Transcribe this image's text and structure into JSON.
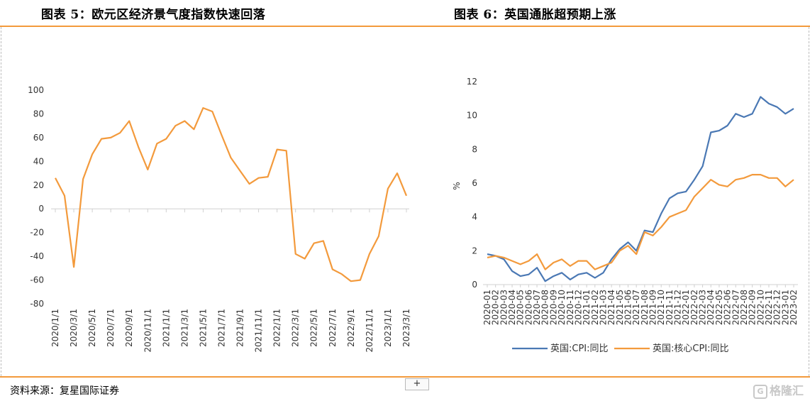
{
  "titles": {
    "left": "图表 5：欧元区经济景气度指数快速回落",
    "right": "图表 6：英国通胀超预期上涨"
  },
  "footer": {
    "source": "资料来源：复星国际证券",
    "add_button": "+",
    "watermark": "格隆汇"
  },
  "colors": {
    "accent_rule": "#f39a3c",
    "line_orange": "#f39a3c",
    "line_blue": "#4a78b4"
  },
  "chart_data": [
    {
      "type": "line",
      "title": "",
      "xlabel": "",
      "ylabel": "",
      "ylim": [
        -80,
        100
      ],
      "yticks": [
        -80,
        -60,
        -40,
        -20,
        0,
        20,
        40,
        60,
        80,
        100
      ],
      "x": [
        "2020/1/1",
        "2020/2/1",
        "2020/3/1",
        "2020/4/1",
        "2020/5/1",
        "2020/6/1",
        "2020/7/1",
        "2020/8/1",
        "2020/9/1",
        "2020/10/1",
        "2020/11/1",
        "2020/12/1",
        "2021/1/1",
        "2021/2/1",
        "2021/3/1",
        "2021/4/1",
        "2021/5/1",
        "2021/6/1",
        "2021/7/1",
        "2021/8/1",
        "2021/9/1",
        "2021/10/1",
        "2021/11/1",
        "2021/12/1",
        "2022/1/1",
        "2022/2/1",
        "2022/3/1",
        "2022/4/1",
        "2022/5/1",
        "2022/6/1",
        "2022/7/1",
        "2022/8/1",
        "2022/9/1",
        "2022/10/1",
        "2022/11/1",
        "2022/12/1",
        "2023/1/1",
        "2023/2/1",
        "2023/3/1"
      ],
      "xtick_labels": [
        "2020/1/1",
        "2020/3/1",
        "2020/5/1",
        "2020/7/1",
        "2020/9/1",
        "2020/11/1",
        "2021/1/1",
        "2021/3/1",
        "2021/5/1",
        "2021/7/1",
        "2021/9/1",
        "2021/11/1",
        "2022/1/1",
        "2022/3/1",
        "2022/5/1",
        "2022/7/1",
        "2022/9/1",
        "2022/11/1",
        "2023/1/1",
        "2023/3/1"
      ],
      "series": [
        {
          "values": [
            26,
            11,
            -49,
            25,
            46,
            59,
            60,
            64,
            74,
            52,
            33,
            55,
            59,
            70,
            74,
            67,
            85,
            82,
            62,
            43,
            32,
            21,
            26,
            27,
            50,
            49,
            -38,
            -42,
            -29,
            -27,
            -51,
            -55,
            -61,
            -60,
            -38,
            -23,
            17,
            30,
            11
          ]
        }
      ],
      "grid": false
    },
    {
      "type": "line",
      "title": "",
      "xlabel": "",
      "ylabel": "%",
      "ylim": [
        0,
        12
      ],
      "yticks": [
        0,
        2,
        4,
        6,
        8,
        10,
        12
      ],
      "legend": "bottom",
      "x": [
        "2020-01",
        "2020-02",
        "2020-03",
        "2020-04",
        "2020-05",
        "2020-06",
        "2020-07",
        "2020-08",
        "2020-09",
        "2020-10",
        "2020-11",
        "2020-12",
        "2021-01",
        "2021-02",
        "2021-03",
        "2021-04",
        "2021-05",
        "2021-06",
        "2021-07",
        "2021-08",
        "2021-09",
        "2021-10",
        "2021-11",
        "2021-12",
        "2022-01",
        "2022-02",
        "2022-03",
        "2022-04",
        "2022-05",
        "2022-06",
        "2022-07",
        "2022-08",
        "2022-09",
        "2022-10",
        "2022-11",
        "2022-12",
        "2023-01",
        "2023-02"
      ],
      "series": [
        {
          "name": "英国:CPI:同比",
          "values": [
            1.8,
            1.7,
            1.5,
            0.8,
            0.5,
            0.6,
            1.0,
            0.2,
            0.5,
            0.7,
            0.3,
            0.6,
            0.7,
            0.4,
            0.7,
            1.5,
            2.1,
            2.5,
            2.0,
            3.2,
            3.1,
            4.2,
            5.1,
            5.4,
            5.5,
            6.2,
            7.0,
            9.0,
            9.1,
            9.4,
            10.1,
            9.9,
            10.1,
            11.1,
            10.7,
            10.5,
            10.1,
            10.4
          ]
        },
        {
          "name": "英国:核心CPI:同比",
          "values": [
            1.6,
            1.7,
            1.6,
            1.4,
            1.2,
            1.4,
            1.8,
            0.9,
            1.3,
            1.5,
            1.1,
            1.4,
            1.4,
            0.9,
            1.1,
            1.3,
            2.0,
            2.3,
            1.8,
            3.1,
            2.9,
            3.4,
            4.0,
            4.2,
            4.4,
            5.2,
            5.7,
            6.2,
            5.9,
            5.8,
            6.2,
            6.3,
            6.5,
            6.5,
            6.3,
            6.3,
            5.8,
            6.2
          ]
        }
      ],
      "grid": false
    }
  ]
}
